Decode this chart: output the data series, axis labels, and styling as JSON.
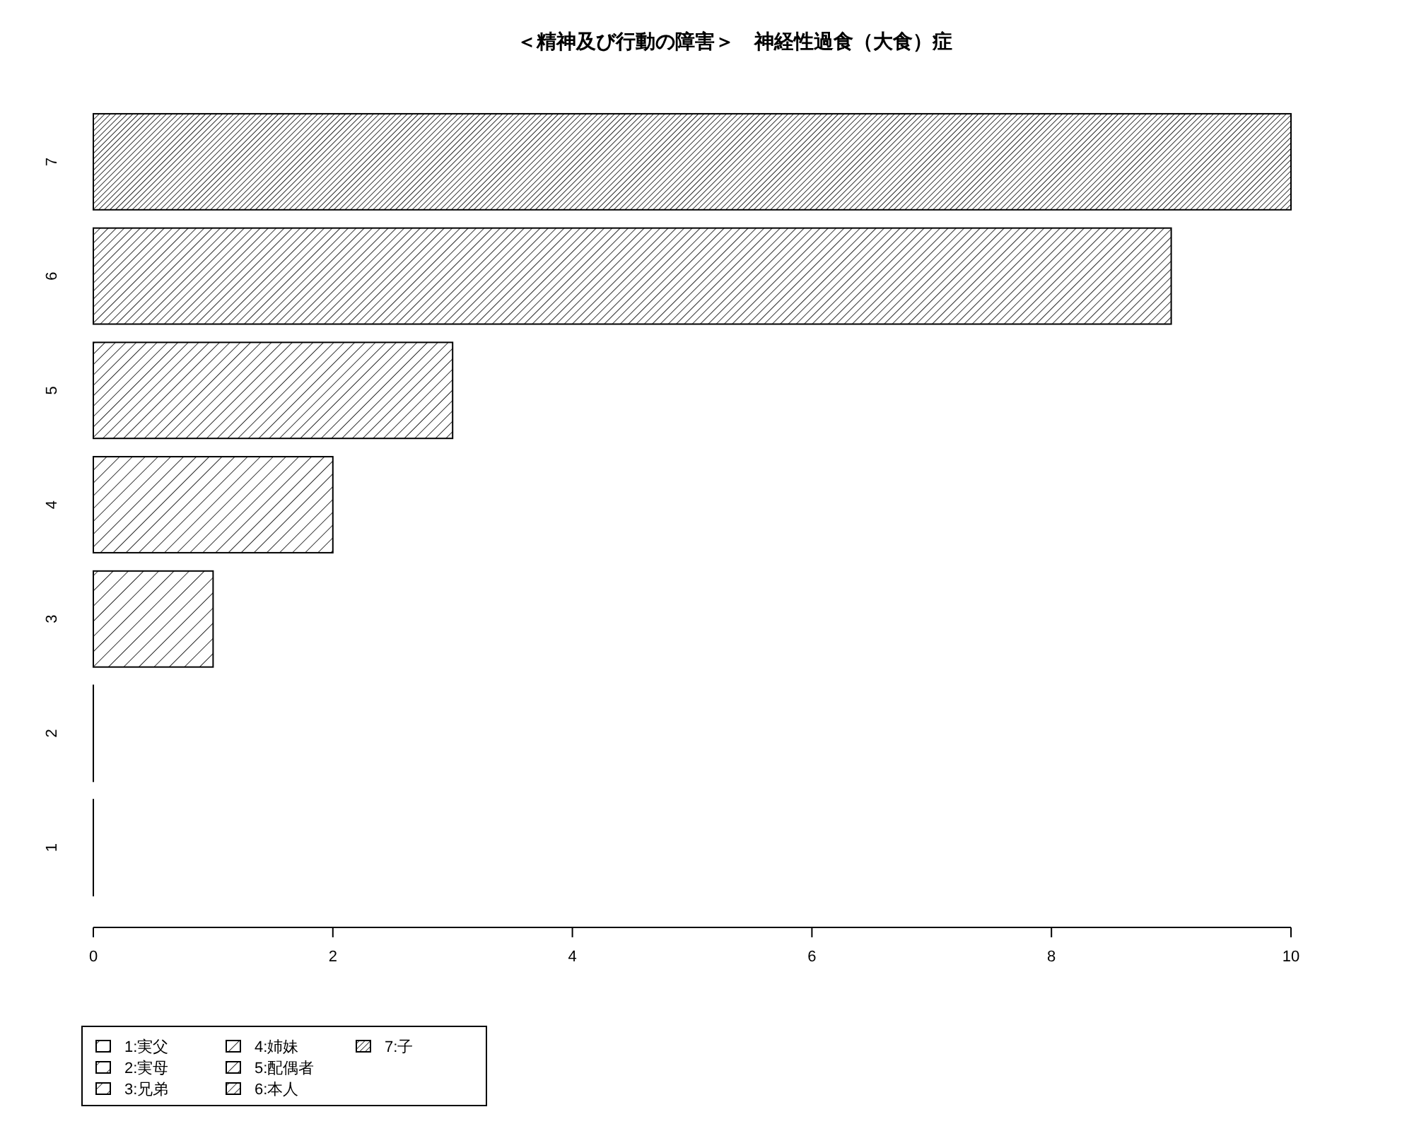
{
  "chart_data": {
    "type": "bar",
    "orientation": "horizontal",
    "title": "＜精神及び行動の障害＞　神経性過食（大食）症",
    "categories": [
      "7",
      "6",
      "5",
      "4",
      "3",
      "2",
      "1"
    ],
    "series": [
      {
        "name": "1:実父",
        "color": "#000000",
        "values": [
          null,
          null,
          null,
          null,
          null,
          null,
          0
        ]
      },
      {
        "name": "2:実母",
        "color": "#000000",
        "values": [
          null,
          null,
          null,
          null,
          null,
          0,
          null
        ]
      },
      {
        "name": "3:兄弟",
        "color": "#000000",
        "values": [
          null,
          null,
          null,
          null,
          1,
          null,
          null
        ]
      },
      {
        "name": "4:姉妹",
        "color": "#000000",
        "values": [
          null,
          null,
          null,
          2,
          null,
          null,
          null
        ]
      },
      {
        "name": "5:配偶者",
        "color": "#000000",
        "values": [
          null,
          null,
          3,
          null,
          null,
          null,
          null
        ]
      },
      {
        "name": "6:本人",
        "color": "#000000",
        "values": [
          null,
          9,
          null,
          null,
          null,
          null,
          null
        ]
      },
      {
        "name": "7:子",
        "color": "#000000",
        "values": [
          10,
          null,
          null,
          null,
          null,
          null,
          null
        ]
      }
    ],
    "xlim": [
      0,
      10
    ],
    "xticks": [
      0,
      2,
      4,
      6,
      8,
      10
    ],
    "grid": false,
    "legend": "bottom left"
  }
}
